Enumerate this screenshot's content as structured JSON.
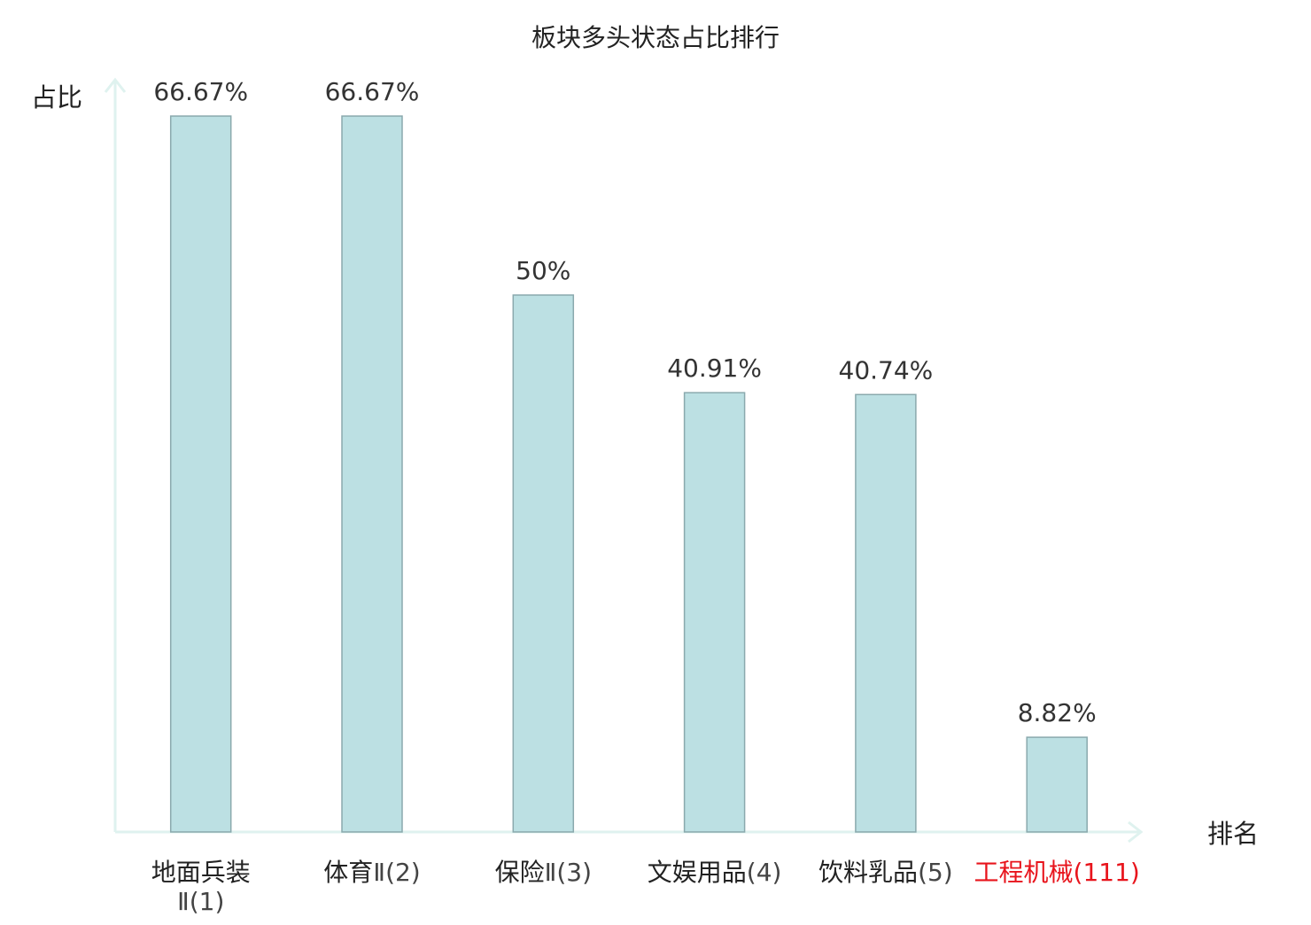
{
  "chart_data": {
    "type": "bar",
    "title": "板块多头状态占比排行",
    "ylabel": "占比",
    "xlabel": "排名",
    "ylim": [
      0,
      70
    ],
    "grid": false,
    "categories": [
      {
        "lines": [
          {
            "parts": [
              {
                "text": "地面兵装",
                "kind": "cjk"
              }
            ]
          },
          {
            "parts": [
              {
                "text": "Ⅱ(1)",
                "kind": "latin"
              }
            ]
          }
        ],
        "highlight": false
      },
      {
        "lines": [
          {
            "parts": [
              {
                "text": "体育",
                "kind": "cjk"
              },
              {
                "text": "Ⅱ(2)",
                "kind": "latin"
              }
            ]
          }
        ],
        "highlight": false
      },
      {
        "lines": [
          {
            "parts": [
              {
                "text": "保险",
                "kind": "cjk"
              },
              {
                "text": "Ⅱ(3)",
                "kind": "latin"
              }
            ]
          }
        ],
        "highlight": false
      },
      {
        "lines": [
          {
            "parts": [
              {
                "text": "文娱用品",
                "kind": "cjk"
              },
              {
                "text": "(4)",
                "kind": "latin"
              }
            ]
          }
        ],
        "highlight": false
      },
      {
        "lines": [
          {
            "parts": [
              {
                "text": "饮料乳品",
                "kind": "cjk"
              },
              {
                "text": "(5)",
                "kind": "latin"
              }
            ]
          }
        ],
        "highlight": false
      },
      {
        "lines": [
          {
            "parts": [
              {
                "text": "工程机械",
                "kind": "cjk"
              },
              {
                "text": "(111)",
                "kind": "latin"
              }
            ]
          }
        ],
        "highlight": true
      }
    ],
    "values": [
      66.67,
      66.67,
      50,
      40.91,
      40.74,
      8.82
    ],
    "data_labels": [
      "66.67%",
      "66.67%",
      "50%",
      "40.91%",
      "40.74%",
      "8.82%"
    ],
    "colors": {
      "bar_fill": "#bce0e3",
      "bar_stroke": "#8aa9ad",
      "axis": "#dff2ef",
      "text": "#222222",
      "label_text": "#333333",
      "latin_text": "#444444",
      "highlight": "#e8141c"
    }
  }
}
